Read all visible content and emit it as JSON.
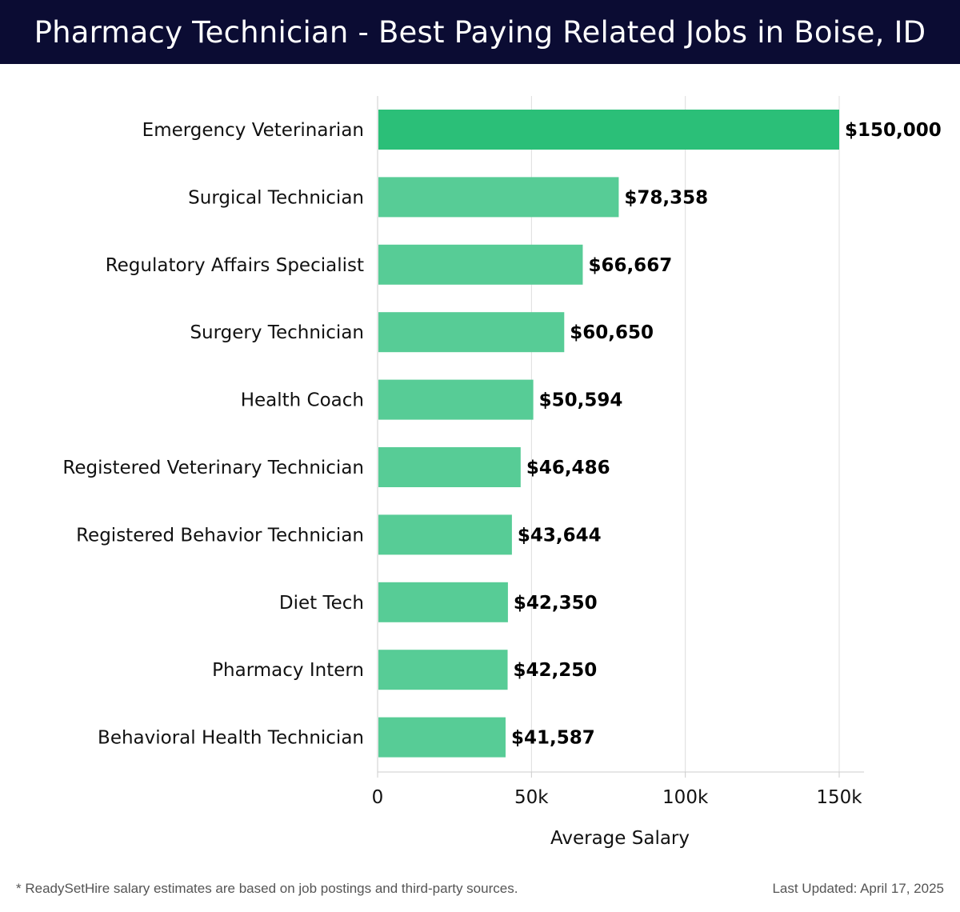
{
  "header": {
    "title": "Pharmacy Technician - Best Paying Related Jobs in Boise, ID"
  },
  "chart_data": {
    "type": "bar",
    "orientation": "horizontal",
    "categories": [
      "Emergency Veterinarian",
      "Surgical Technician",
      "Regulatory Affairs Specialist",
      "Surgery Technician",
      "Health Coach",
      "Registered Veterinary Technician",
      "Registered Behavior Technician",
      "Diet Tech",
      "Pharmacy Intern",
      "Behavioral Health Technician"
    ],
    "values": [
      150000,
      78358,
      66667,
      60650,
      50594,
      46486,
      43644,
      42350,
      42250,
      41587
    ],
    "value_labels": [
      "$150,000",
      "$78,358",
      "$66,667",
      "$60,650",
      "$50,594",
      "$46,486",
      "$43,644",
      "$42,350",
      "$42,250",
      "$41,587"
    ],
    "xlabel": "Average Salary",
    "ylabel": "",
    "xlim": [
      0,
      158000
    ],
    "xticks": [
      0,
      50000,
      100000,
      150000
    ],
    "xtick_labels": [
      "0",
      "50k",
      "100k",
      "150k"
    ],
    "grid": true,
    "colors": {
      "top_bar": "#2bbf78",
      "bar": "#57cc96",
      "grid": "#dddddd",
      "axis": "#cccccc",
      "header_bg": "#0b0c33"
    }
  },
  "footer": {
    "note": "* ReadySetHire salary estimates are based on job postings and third-party sources.",
    "updated": "Last Updated: April 17, 2025"
  }
}
